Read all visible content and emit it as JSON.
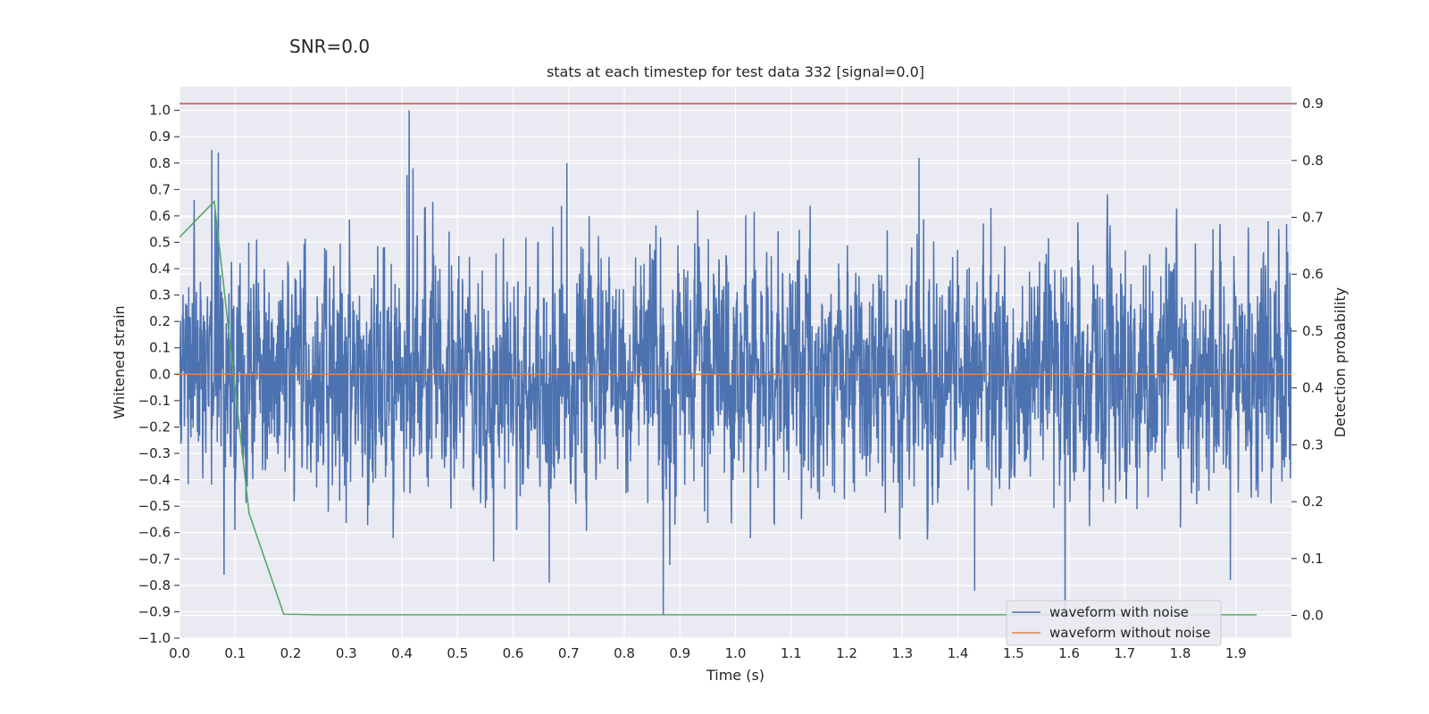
{
  "chart_data": {
    "type": "line",
    "suptitle": "SNR=0.0",
    "title": "stats at each timestep for test data 332 [signal=0.0]",
    "xlabel": "Time (s)",
    "ylabel_left": "Whitened strain",
    "ylabel_right": "Detection probability",
    "xlim": [
      0.0,
      2.0
    ],
    "ylim_left": [
      -1.0,
      1.09
    ],
    "ylim_right": [
      -0.04,
      0.93
    ],
    "x_ticks": [
      0.0,
      0.1,
      0.2,
      0.3,
      0.4,
      0.5,
      0.6,
      0.7,
      0.8,
      0.9,
      1.0,
      1.1,
      1.2,
      1.3,
      1.4,
      1.5,
      1.6,
      1.7,
      1.8,
      1.9
    ],
    "x_tick_labels": [
      "0.0",
      "0.1",
      "0.2",
      "0.3",
      "0.4",
      "0.5",
      "0.6",
      "0.7",
      "0.8",
      "0.9",
      "1.0",
      "1.1",
      "1.2",
      "1.3",
      "1.4",
      "1.5",
      "1.6",
      "1.7",
      "1.8",
      "1.9"
    ],
    "y_left_ticks": [
      1.0,
      0.9,
      0.8,
      0.7,
      0.6,
      0.5,
      0.4,
      0.3,
      0.2,
      0.1,
      0.0,
      -0.1,
      -0.2,
      -0.3,
      -0.4,
      -0.5,
      -0.6,
      -0.7,
      -0.8,
      -0.9,
      -1.0
    ],
    "y_left_tick_labels": [
      "1.0",
      "0.9",
      "0.8",
      "0.7",
      "0.6",
      "0.5",
      "0.4",
      "0.3",
      "0.2",
      "0.1",
      "0.0",
      "−0.1",
      "−0.2",
      "−0.3",
      "−0.4",
      "−0.5",
      "−0.6",
      "−0.7",
      "−0.8",
      "−0.9",
      "−1.0"
    ],
    "y_right_ticks": [
      0.9,
      0.8,
      0.7,
      0.6,
      0.5,
      0.4,
      0.3,
      0.2,
      0.1,
      0.0
    ],
    "y_right_tick_labels": [
      "0.9",
      "0.8",
      "0.7",
      "0.6",
      "0.5",
      "0.4",
      "0.3",
      "0.2",
      "0.1",
      "0.0"
    ],
    "threshold": {
      "value": 0.9,
      "axis": "right",
      "color": "#c44e52"
    },
    "series": [
      {
        "name": "waveform with noise",
        "axis": "left",
        "color": "#4c72b0",
        "sample_rate": 2048,
        "amplitude_std": 0.28,
        "notable_peaks": [
          {
            "x": 0.058,
            "y": 0.85
          },
          {
            "x": 0.07,
            "y": 0.84
          },
          {
            "x": 0.413,
            "y": 1.0
          },
          {
            "x": 0.42,
            "y": 0.78
          },
          {
            "x": 0.697,
            "y": 0.8
          },
          {
            "x": 1.33,
            "y": 0.82
          },
          {
            "x": 0.87,
            "y": -0.91
          },
          {
            "x": 1.43,
            "y": -0.82
          },
          {
            "x": 1.89,
            "y": -0.78
          },
          {
            "x": 0.665,
            "y": -0.79
          },
          {
            "x": 0.08,
            "y": -0.76
          }
        ]
      },
      {
        "name": "waveform without noise",
        "axis": "left",
        "color": "#dd8452",
        "values": "constant 0.0 over full range"
      },
      {
        "name": "detection probability",
        "axis": "right",
        "color": "#55a868",
        "x": [
          0.0,
          0.0625,
          0.125,
          0.1875,
          0.25,
          0.3125,
          0.375,
          0.4375,
          0.5,
          0.5625,
          0.625,
          0.6875,
          0.75,
          0.8125,
          0.875,
          0.9375,
          1.0,
          1.0625,
          1.125,
          1.1875,
          1.25,
          1.3125,
          1.375,
          1.4375,
          1.5,
          1.5625,
          1.625,
          1.6875,
          1.75,
          1.8125,
          1.875,
          1.9375
        ],
        "y": [
          0.665,
          0.728,
          0.18,
          0.002,
          0.001,
          0.001,
          0.001,
          0.001,
          0.001,
          0.001,
          0.001,
          0.001,
          0.001,
          0.001,
          0.001,
          0.001,
          0.001,
          0.001,
          0.001,
          0.001,
          0.001,
          0.001,
          0.001,
          0.001,
          0.001,
          0.001,
          0.001,
          0.001,
          0.001,
          0.001,
          0.001,
          0.001
        ]
      }
    ],
    "legend": {
      "location": "lower-right",
      "entries": [
        {
          "label": "waveform with noise",
          "color": "#4c72b0"
        },
        {
          "label": "waveform without noise",
          "color": "#dd8452"
        }
      ]
    },
    "style": {
      "background": "#eaeaf2",
      "grid": true,
      "grid_color": "#ffffff"
    }
  }
}
